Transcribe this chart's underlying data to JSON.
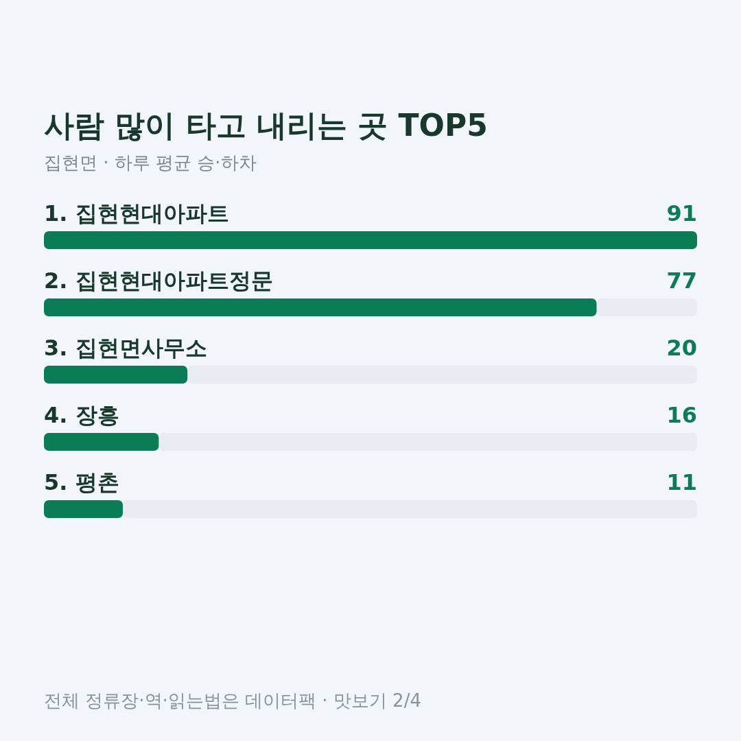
{
  "chart_data": {
    "type": "bar",
    "orientation": "horizontal",
    "title": "사람 많이 타고 내리는 곳 TOP5",
    "subtitle": "집현면 · 하루 평균 승·하차",
    "categories": [
      "1. 집현현대아파트",
      "2. 집현현대아파트정문",
      "3. 집현면사무소",
      "4. 장흥",
      "5. 평촌"
    ],
    "values": [
      91,
      77,
      20,
      16,
      11
    ],
    "color": "#0b7c55",
    "data_labels": true,
    "annotations": [
      "전체 정류장·역·읽는법은 데이터팩 · 맛보기 2/4"
    ]
  }
}
